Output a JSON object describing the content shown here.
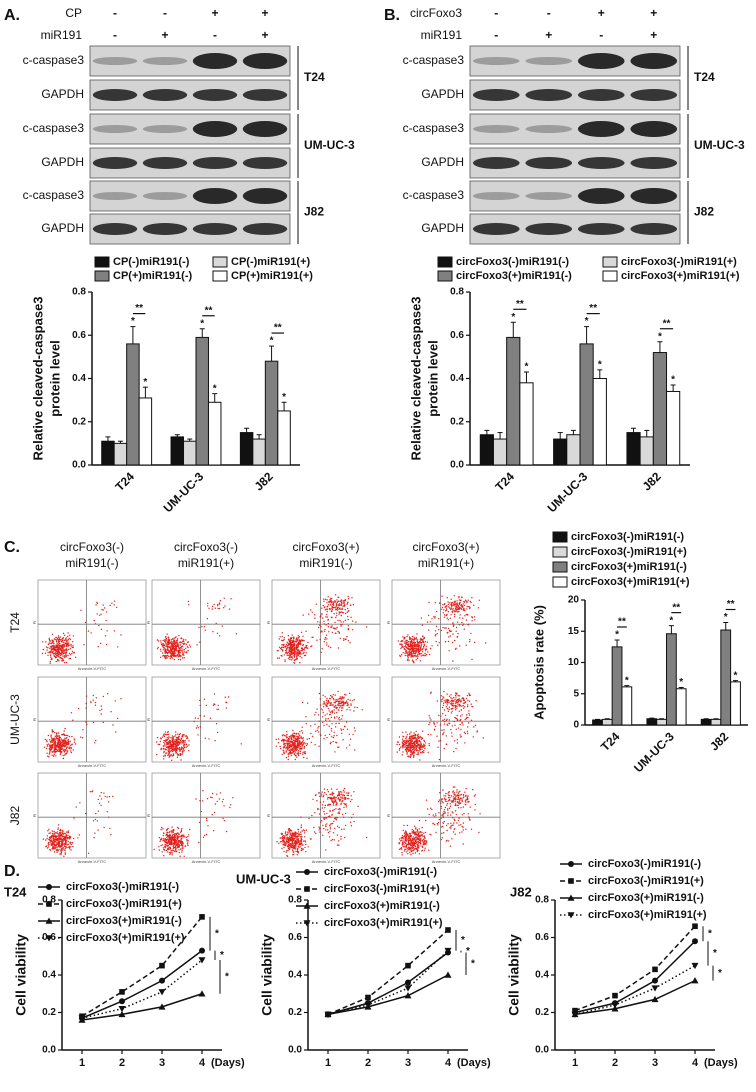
{
  "panel_a": {
    "label": "A.",
    "conditions": [
      {
        "name": "CP",
        "signs": [
          "-",
          "-",
          "+",
          "+"
        ]
      },
      {
        "name": "miR191",
        "signs": [
          "-",
          "+",
          "-",
          "+"
        ]
      }
    ],
    "blots": [
      {
        "cell_line": "T24",
        "rows": [
          "c-caspase3",
          "GAPDH"
        ]
      },
      {
        "cell_line": "UM-UC-3",
        "rows": [
          "c-caspase3",
          "GAPDH"
        ]
      },
      {
        "cell_line": "J82",
        "rows": [
          "c-caspase3",
          "GAPDH"
        ]
      }
    ]
  },
  "panel_b": {
    "label": "B.",
    "conditions": [
      {
        "name": "circFoxo3",
        "signs": [
          "-",
          "-",
          "+",
          "+"
        ]
      },
      {
        "name": "miR191",
        "signs": [
          "-",
          "+",
          "-",
          "+"
        ]
      }
    ],
    "blots": [
      {
        "cell_line": "T24",
        "rows": [
          "c-caspase3",
          "GAPDH"
        ]
      },
      {
        "cell_line": "UM-UC-3",
        "rows": [
          "c-caspase3",
          "GAPDH"
        ]
      },
      {
        "cell_line": "J82",
        "rows": [
          "c-caspase3",
          "GAPDH"
        ]
      }
    ]
  },
  "panel_c": {
    "label": "C.",
    "columns": [
      [
        "circFoxo3(-)",
        "miR191(-)"
      ],
      [
        "circFoxo3(-)",
        "miR191(+)"
      ],
      [
        "circFoxo3(+)",
        "miR191(-)"
      ],
      [
        "circFoxo3(+)",
        "miR191(+)"
      ]
    ],
    "rows": [
      "T24",
      "UM-UC-3",
      "J82"
    ],
    "x_axis_label": "Annexin-V-FITC",
    "y_axis_label": "PI"
  },
  "panel_d": {
    "label": "D."
  },
  "chart_data": [
    {
      "type": "bar",
      "y_label": [
        "Relative cleaved-caspase3",
        "protein level"
      ],
      "categories": [
        "T24",
        "UM-UC-3",
        "J82"
      ],
      "ylim": [
        0,
        0.8
      ],
      "yticks": [
        {
          "value": 0,
          "label": "0.0"
        },
        {
          "value": 0.2,
          "label": "0.2"
        },
        {
          "value": 0.4,
          "label": "0.4"
        },
        {
          "value": 0.6,
          "label": "0.6"
        },
        {
          "value": 0.8,
          "label": "0.8"
        }
      ],
      "series": [
        {
          "name": "CP(-)miR191(-)",
          "color": "#111111",
          "values": [
            0.11,
            0.13,
            0.15
          ],
          "errors": [
            0.02,
            0.01,
            0.02
          ]
        },
        {
          "name": "CP(-)miR191(+)",
          "color": "#d9d9d9",
          "values": [
            0.1,
            0.11,
            0.12
          ],
          "errors": [
            0.01,
            0.01,
            0.02
          ]
        },
        {
          "name": "CP(+)miR191(-)",
          "color": "#808080",
          "values": [
            0.56,
            0.59,
            0.48
          ],
          "errors": [
            0.08,
            0.04,
            0.07
          ],
          "marks": [
            "*",
            "*",
            "*"
          ]
        },
        {
          "name": "CP(+)miR191(+)",
          "color": "#ffffff",
          "values": [
            0.31,
            0.29,
            0.25
          ],
          "errors": [
            0.05,
            0.04,
            0.04
          ],
          "marks": [
            "*",
            "*",
            "*"
          ]
        }
      ],
      "brackets": [
        "**",
        "**",
        "**"
      ]
    },
    {
      "type": "bar",
      "y_label": [
        "Relative cleaved-caspase3",
        "protein level"
      ],
      "categories": [
        "T24",
        "UM-UC-3",
        "J82"
      ],
      "ylim": [
        0,
        0.8
      ],
      "yticks": [
        {
          "value": 0,
          "label": "0.0"
        },
        {
          "value": 0.2,
          "label": "0.2"
        },
        {
          "value": 0.4,
          "label": "0.4"
        },
        {
          "value": 0.6,
          "label": "0.6"
        },
        {
          "value": 0.8,
          "label": "0.8"
        }
      ],
      "series": [
        {
          "name": "circFoxo3(-)miR191(-)",
          "color": "#111111",
          "values": [
            0.14,
            0.12,
            0.15
          ],
          "errors": [
            0.02,
            0.03,
            0.02
          ]
        },
        {
          "name": "circFoxo3(-)miR191(+)",
          "color": "#d9d9d9",
          "values": [
            0.12,
            0.14,
            0.13
          ],
          "errors": [
            0.03,
            0.02,
            0.03
          ]
        },
        {
          "name": "circFoxo3(+)miR191(-)",
          "color": "#808080",
          "values": [
            0.59,
            0.56,
            0.52
          ],
          "errors": [
            0.07,
            0.08,
            0.05
          ],
          "marks": [
            "*",
            "*",
            "*"
          ]
        },
        {
          "name": "circFoxo3(+)miR191(+)",
          "color": "#ffffff",
          "values": [
            0.38,
            0.4,
            0.34
          ],
          "errors": [
            0.05,
            0.04,
            0.03
          ],
          "marks": [
            "*",
            "*",
            "*"
          ]
        }
      ],
      "brackets": [
        "**",
        "**",
        "**"
      ]
    },
    {
      "type": "bar",
      "y_label": [
        "Apoptosis rate (%)"
      ],
      "categories": [
        "T24",
        "UM-UC-3",
        "J82"
      ],
      "ylim": [
        0,
        20
      ],
      "yticks": [
        0,
        5,
        10,
        15,
        20
      ],
      "series": [
        {
          "name": "circFoxo3(-)miR191(-)",
          "color": "#111111",
          "values": [
            0.8,
            1.0,
            0.9
          ],
          "errors": [
            0.1,
            0.1,
            0.1
          ]
        },
        {
          "name": "circFoxo3(-)miR191(+)",
          "color": "#d9d9d9",
          "values": [
            0.9,
            0.9,
            0.9
          ],
          "errors": [
            0.1,
            0.1,
            0.1
          ]
        },
        {
          "name": "circFoxo3(+)miR191(-)",
          "color": "#808080",
          "values": [
            12.5,
            14.6,
            15.2
          ],
          "errors": [
            1.1,
            1.3,
            1.2
          ],
          "marks": [
            "*",
            "*",
            "*"
          ]
        },
        {
          "name": "circFoxo3(+)miR191(+)",
          "color": "#ffffff",
          "values": [
            6.1,
            5.8,
            6.9
          ],
          "errors": [
            0.2,
            0.2,
            0.2
          ],
          "marks": [
            "*",
            "*",
            "*"
          ]
        }
      ],
      "brackets": [
        "**",
        "**",
        "**"
      ]
    },
    {
      "type": "line",
      "title": "T24",
      "y_label": "Cell viability",
      "x_label": "(Days)",
      "x": [
        1,
        2,
        3,
        4
      ],
      "xlim": [
        0.5,
        4.5
      ],
      "xticks": [
        1,
        2,
        3,
        4
      ],
      "ylim": [
        0,
        0.8
      ],
      "yticks": [
        {
          "value": 0,
          "label": "0.0"
        },
        {
          "value": 0.2,
          "label": "0.2"
        },
        {
          "value": 0.4,
          "label": "0.4"
        },
        {
          "value": 0.6,
          "label": "0.6"
        },
        {
          "value": 0.8,
          "label": "0.8"
        }
      ],
      "series": [
        {
          "name": "circFoxo3(-)miR191(-)",
          "color": "#111111",
          "marker": "circle",
          "dash": "solid",
          "values": [
            0.17,
            0.26,
            0.37,
            0.53
          ]
        },
        {
          "name": "circFoxo3(-)miR191(+)",
          "color": "#111111",
          "marker": "square",
          "dash": "dashed",
          "values": [
            0.18,
            0.31,
            0.45,
            0.71
          ]
        },
        {
          "name": "circFoxo3(+)miR191(-)",
          "color": "#111111",
          "marker": "triangle",
          "dash": "solid",
          "values": [
            0.16,
            0.19,
            0.23,
            0.3
          ]
        },
        {
          "name": "circFoxo3(+)miR191(+)",
          "color": "#111111",
          "marker": "triangle-down",
          "dash": "dotted",
          "values": [
            0.17,
            0.22,
            0.31,
            0.48
          ]
        }
      ],
      "annotations": [
        "*",
        "*",
        "*"
      ]
    },
    {
      "type": "line",
      "title": "UM-UC-3",
      "y_label": "Cell viability",
      "x_label": "(Days)",
      "x": [
        1,
        2,
        3,
        4
      ],
      "xlim": [
        0.5,
        4.5
      ],
      "xticks": [
        1,
        2,
        3,
        4
      ],
      "ylim": [
        0,
        0.8
      ],
      "yticks": [
        {
          "value": 0,
          "label": "0.0"
        },
        {
          "value": 0.2,
          "label": "0.2"
        },
        {
          "value": 0.4,
          "label": "0.4"
        },
        {
          "value": 0.6,
          "label": "0.6"
        },
        {
          "value": 0.8,
          "label": "0.8"
        }
      ],
      "series": [
        {
          "name": "circFoxo3(-)miR191(-)",
          "color": "#111111",
          "marker": "circle",
          "dash": "solid",
          "values": [
            0.19,
            0.25,
            0.36,
            0.52
          ]
        },
        {
          "name": "circFoxo3(-)miR191(+)",
          "color": "#111111",
          "marker": "square",
          "dash": "dashed",
          "values": [
            0.19,
            0.28,
            0.45,
            0.64
          ]
        },
        {
          "name": "circFoxo3(+)miR191(-)",
          "color": "#111111",
          "marker": "triangle",
          "dash": "solid",
          "values": [
            0.19,
            0.23,
            0.29,
            0.4
          ]
        },
        {
          "name": "circFoxo3(+)miR191(+)",
          "color": "#111111",
          "marker": "triangle-down",
          "dash": "dotted",
          "values": [
            0.19,
            0.24,
            0.33,
            0.53
          ]
        }
      ],
      "annotations": [
        "*",
        "*",
        "*"
      ]
    },
    {
      "type": "line",
      "title": "J82",
      "y_label": "Cell viability",
      "x_label": "(Days)",
      "x": [
        1,
        2,
        3,
        4
      ],
      "xlim": [
        0.5,
        4.5
      ],
      "xticks": [
        1,
        2,
        3,
        4
      ],
      "ylim": [
        0,
        0.8
      ],
      "yticks": [
        {
          "value": 0,
          "label": "0.0"
        },
        {
          "value": 0.2,
          "label": "0.2"
        },
        {
          "value": 0.4,
          "label": "0.4"
        },
        {
          "value": 0.6,
          "label": "0.6"
        },
        {
          "value": 0.8,
          "label": "0.8"
        }
      ],
      "series": [
        {
          "name": "circFoxo3(-)miR191(-)",
          "color": "#111111",
          "marker": "circle",
          "dash": "solid",
          "values": [
            0.2,
            0.25,
            0.37,
            0.58
          ]
        },
        {
          "name": "circFoxo3(-)miR191(+)",
          "color": "#111111",
          "marker": "square",
          "dash": "dashed",
          "values": [
            0.21,
            0.29,
            0.43,
            0.66
          ]
        },
        {
          "name": "circFoxo3(+)miR191(-)",
          "color": "#111111",
          "marker": "triangle",
          "dash": "solid",
          "values": [
            0.19,
            0.22,
            0.27,
            0.37
          ]
        },
        {
          "name": "circFoxo3(+)miR191(+)",
          "color": "#111111",
          "marker": "triangle-down",
          "dash": "dotted",
          "values": [
            0.19,
            0.24,
            0.33,
            0.45
          ]
        }
      ],
      "annotations": [
        "*",
        "*",
        "*"
      ]
    }
  ]
}
